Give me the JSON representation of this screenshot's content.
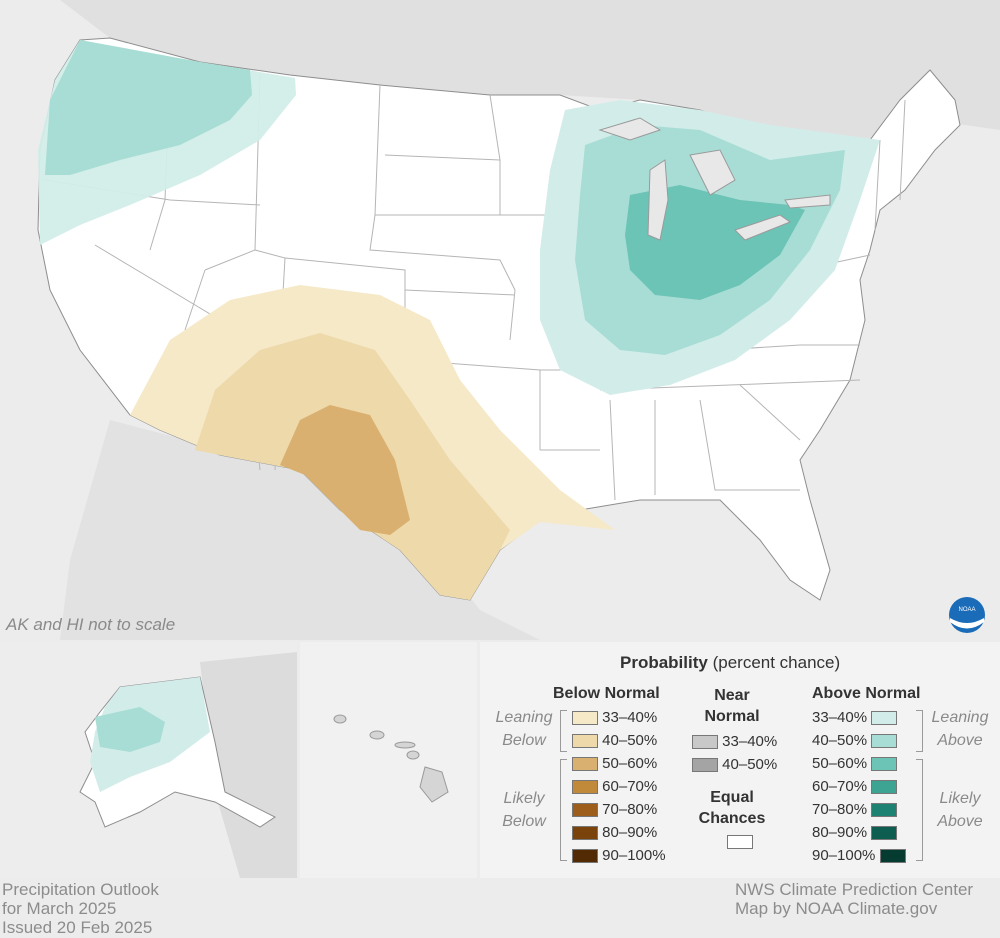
{
  "map": {
    "scale_note": "AK and HI not to scale",
    "logo": "noaa-logo"
  },
  "legend": {
    "title_bold": "Probability",
    "title_rest": " (percent chance)",
    "below": {
      "header": "Below Normal",
      "leaning_label": [
        "Leaning",
        "Below"
      ],
      "likely_label": [
        "Likely",
        "Below"
      ],
      "rows": [
        {
          "label": "33–40%",
          "color": "#f6e9c8"
        },
        {
          "label": "40–50%",
          "color": "#eed9aa"
        },
        {
          "label": "50–60%",
          "color": "#d9b070"
        },
        {
          "label": "60–70%",
          "color": "#c18a3a"
        },
        {
          "label": "70–80%",
          "color": "#9c5e1a"
        },
        {
          "label": "80–90%",
          "color": "#7a430c"
        },
        {
          "label": "90–100%",
          "color": "#522b05"
        }
      ]
    },
    "near": {
      "header": [
        "Near",
        "Normal"
      ],
      "rows": [
        {
          "label": "33–40%",
          "color": "#c8c8c8"
        },
        {
          "label": "40–50%",
          "color": "#a4a4a4"
        }
      ],
      "equal_header": [
        "Equal",
        "Chances"
      ],
      "equal_color": "#ffffff"
    },
    "above": {
      "header": "Above Normal",
      "leaning_label": [
        "Leaning",
        "Above"
      ],
      "likely_label": [
        "Likely",
        "Above"
      ],
      "rows": [
        {
          "label": "33–40%",
          "color": "#d2ede9"
        },
        {
          "label": "40–50%",
          "color": "#a8ddd5"
        },
        {
          "label": "50–60%",
          "color": "#6cc4b6"
        },
        {
          "label": "60–70%",
          "color": "#3da494"
        },
        {
          "label": "70–80%",
          "color": "#1e8272"
        },
        {
          "label": "80–90%",
          "color": "#0d5e50"
        },
        {
          "label": "90–100%",
          "color": "#063b32"
        }
      ]
    }
  },
  "footer": {
    "left": [
      "Precipitation Outlook",
      "for March 2025",
      "Issued 20 Feb 2025"
    ],
    "right": [
      "NWS Climate Prediction Center",
      "Map by NOAA Climate.gov"
    ]
  }
}
